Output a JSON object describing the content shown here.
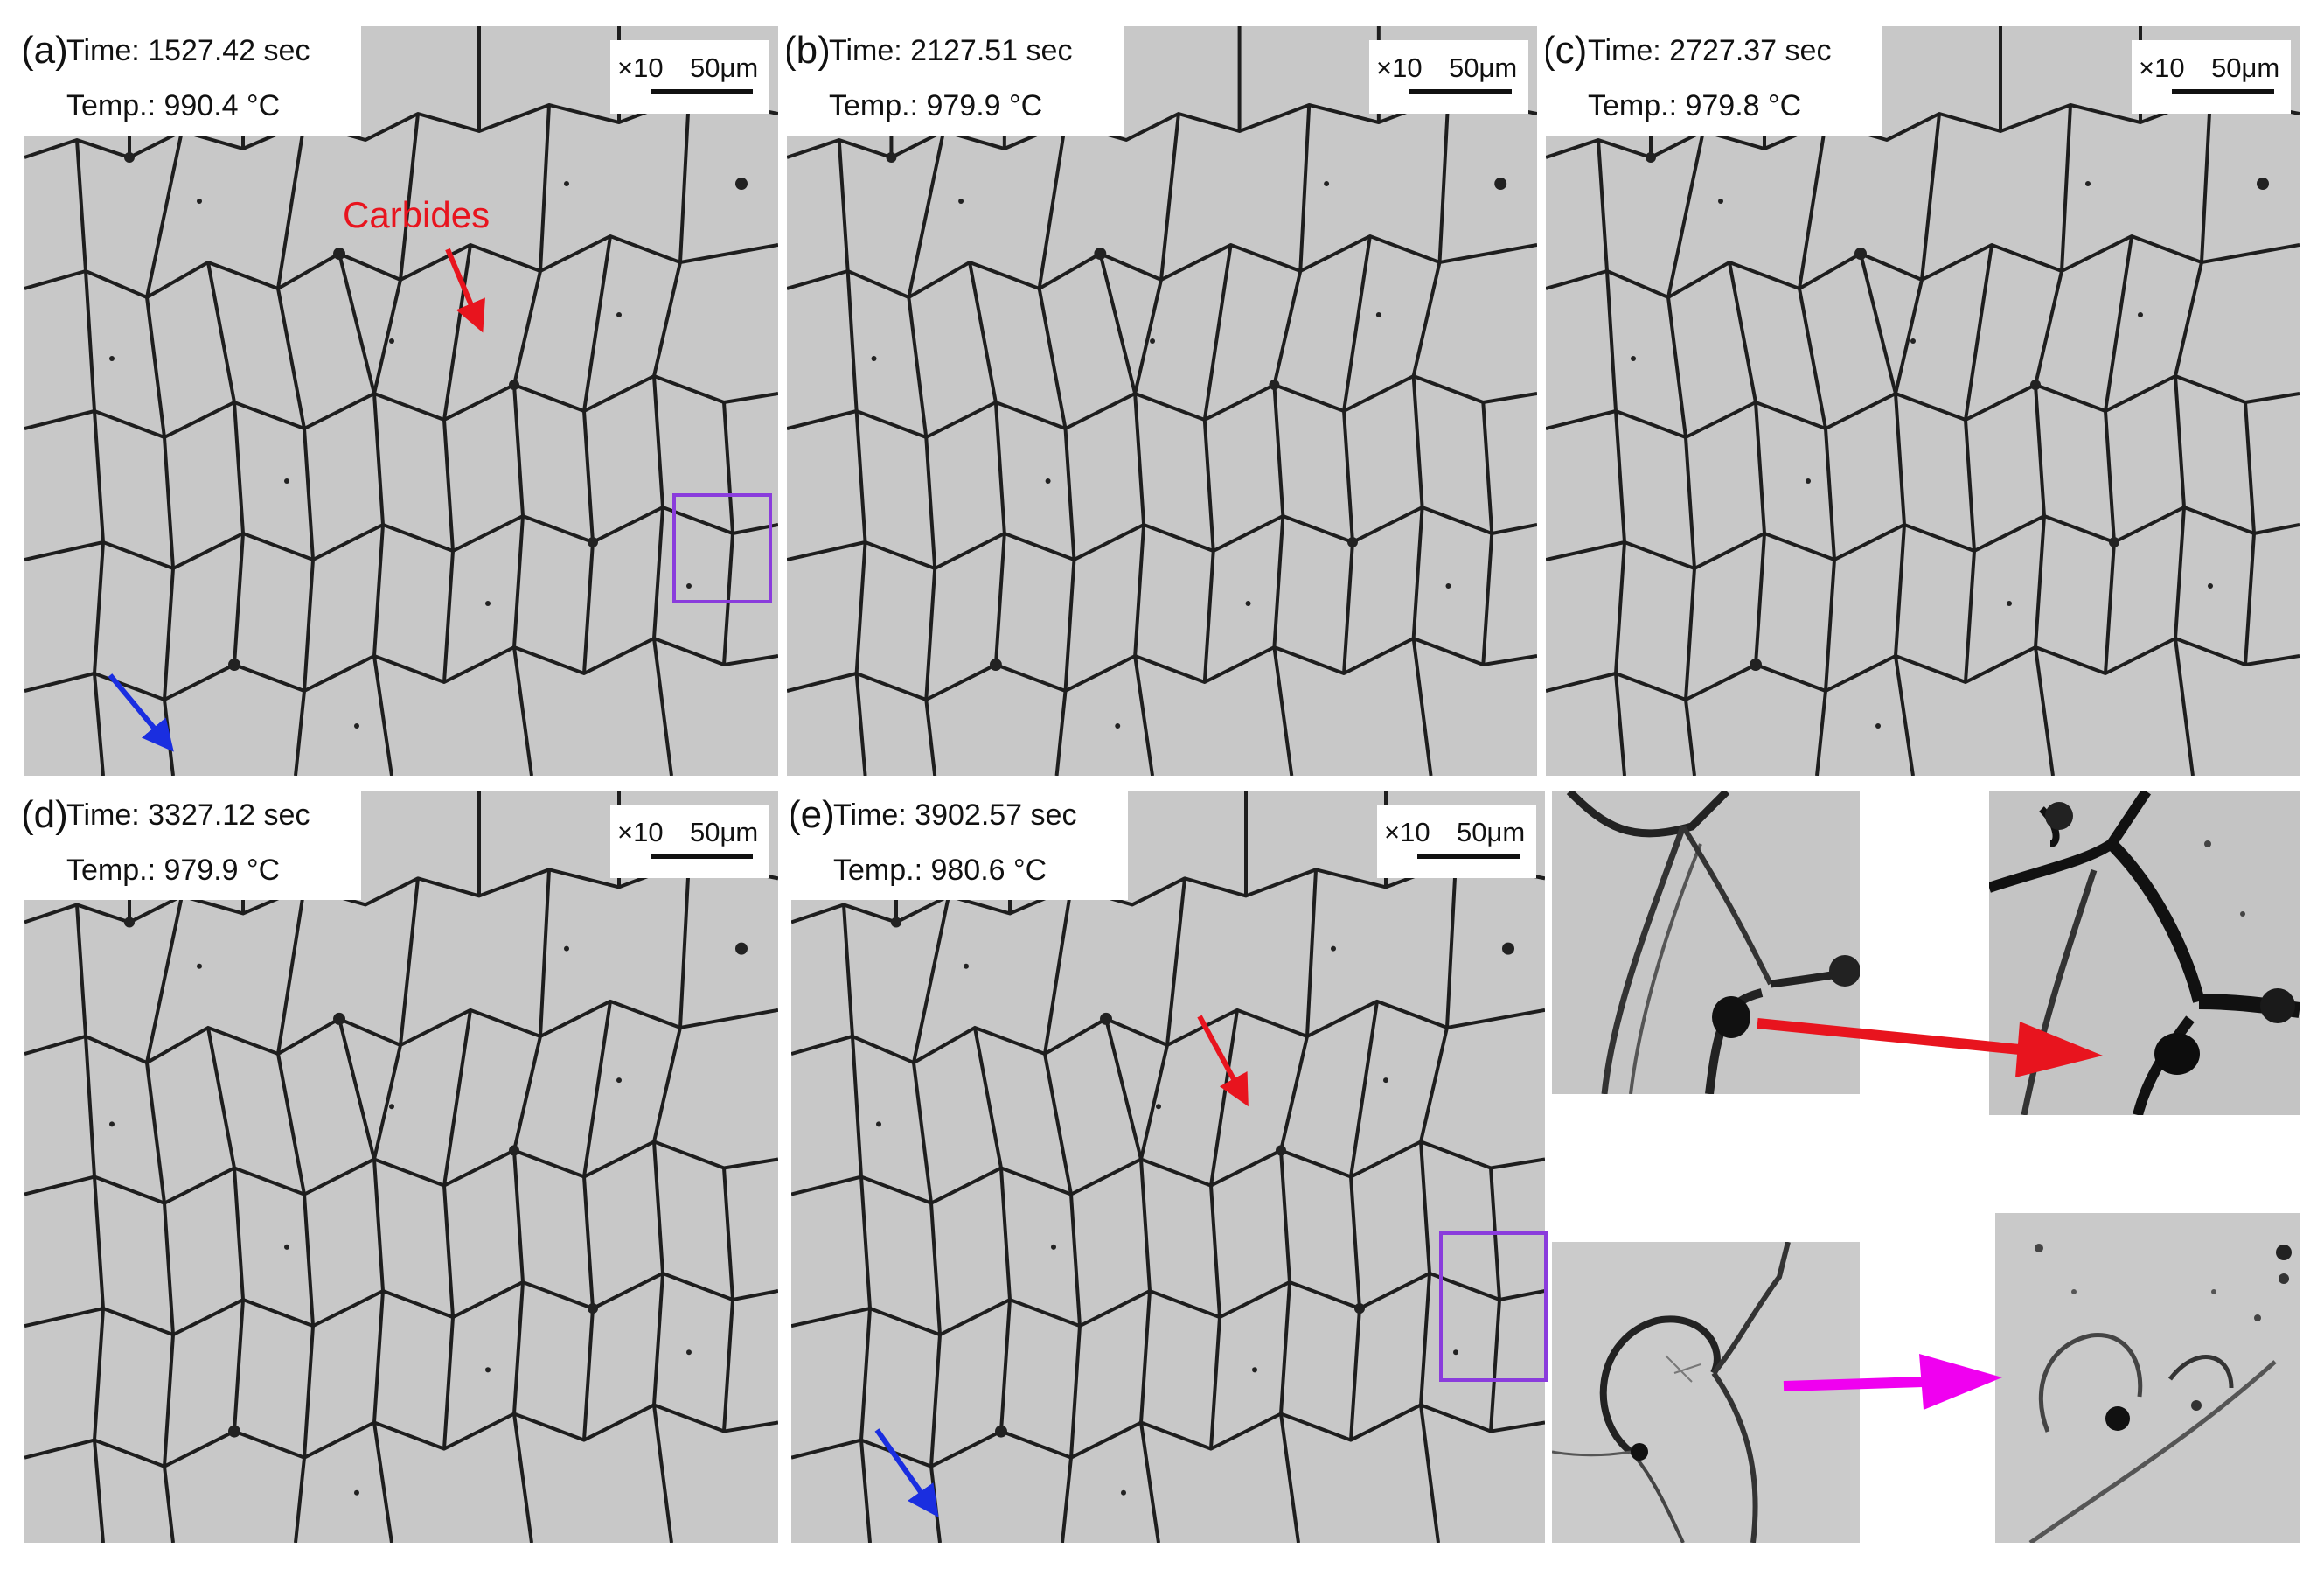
{
  "figure": {
    "panels": [
      {
        "label": "(a)",
        "time": "Time: 1527.42 sec",
        "temp": "Temp.: 990.4 °C",
        "magnification": "×10",
        "scale_bar": "50μm"
      },
      {
        "label": "(b)",
        "time": "Time: 2127.51 sec",
        "temp": "Temp.: 979.9 °C",
        "magnification": "×10",
        "scale_bar": "50μm"
      },
      {
        "label": "(c)",
        "time": "Time: 2727.37 sec",
        "temp": "Temp.: 979.8 °C",
        "magnification": "×10",
        "scale_bar": "50μm"
      },
      {
        "label": "(d)",
        "time": "Time: 3327.12 sec",
        "temp": "Temp.: 979.9 °C",
        "magnification": "×10",
        "scale_bar": "50μm"
      },
      {
        "label": "(e)",
        "time": "Time: 3902.57 sec",
        "temp": "Temp.: 980.6 °C",
        "magnification": "×10",
        "scale_bar": "50μm"
      }
    ],
    "annotations": {
      "carbides_label": "Carbides"
    },
    "colors": {
      "red_arrow": "#e8141e",
      "blue_arrow": "#1a2ee0",
      "magenta_arrow": "#f000f0",
      "purple_box": "#8a3cdc"
    }
  }
}
